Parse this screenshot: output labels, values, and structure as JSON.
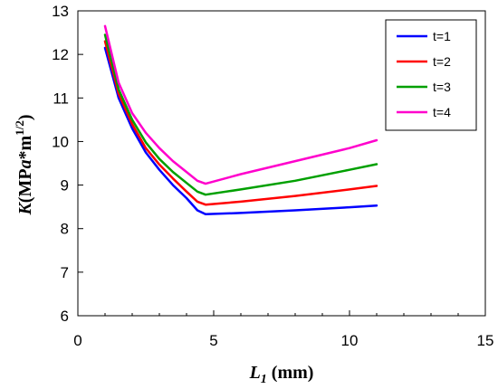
{
  "chart_data": {
    "type": "line",
    "xlim": [
      0,
      15
    ],
    "ylim": [
      6,
      13
    ],
    "x_ticks": [
      "0",
      "5",
      "10",
      "15"
    ],
    "y_ticks": [
      "6",
      "7",
      "8",
      "9",
      "10",
      "11",
      "12",
      "13"
    ],
    "xlabel": {
      "main": "L",
      "sub": "1",
      "rest": " (mm)"
    },
    "ylabel": {
      "main": "K",
      "rest": "(MP",
      "a": "a",
      "tail": "*m",
      "sup": "1/2",
      "close": ")"
    },
    "grid": false,
    "legend_position": "top-right",
    "series": [
      {
        "name": "t=1",
        "color": "#0000ff",
        "x": [
          1,
          1.5,
          2,
          2.5,
          3,
          3.5,
          4,
          4.4,
          4.7,
          6,
          8,
          10,
          11
        ],
        "y": [
          12.15,
          11.0,
          10.3,
          9.75,
          9.35,
          9.0,
          8.7,
          8.42,
          8.33,
          8.36,
          8.42,
          8.49,
          8.53
        ]
      },
      {
        "name": "t=2",
        "color": "#ff0000",
        "x": [
          1,
          1.5,
          2,
          2.5,
          3,
          3.5,
          4,
          4.4,
          4.7,
          6,
          8,
          10,
          11
        ],
        "y": [
          12.3,
          11.1,
          10.4,
          9.85,
          9.47,
          9.15,
          8.85,
          8.62,
          8.55,
          8.62,
          8.75,
          8.9,
          8.98
        ]
      },
      {
        "name": "t=3",
        "color": "#00a000",
        "x": [
          1,
          1.5,
          2,
          2.5,
          3,
          3.5,
          4,
          4.4,
          4.7,
          6,
          8,
          10,
          11
        ],
        "y": [
          12.45,
          11.2,
          10.5,
          9.98,
          9.6,
          9.3,
          9.05,
          8.85,
          8.78,
          8.9,
          9.1,
          9.35,
          9.48
        ]
      },
      {
        "name": "t=4",
        "color": "#ff00cc",
        "x": [
          1,
          1.5,
          2,
          2.5,
          3,
          3.5,
          4,
          4.4,
          4.7,
          6,
          8,
          10,
          11
        ],
        "y": [
          12.65,
          11.35,
          10.65,
          10.2,
          9.85,
          9.55,
          9.3,
          9.1,
          9.03,
          9.25,
          9.55,
          9.85,
          10.03
        ]
      }
    ]
  }
}
